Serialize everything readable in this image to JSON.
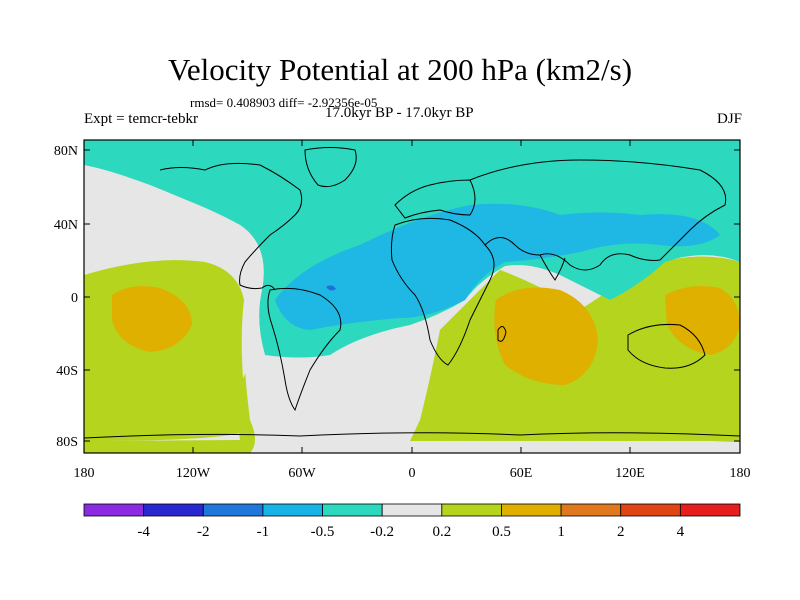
{
  "title": "Velocity Potential at 200 hPa (km2/s)",
  "stats_line": "rmsd= 0.408903 diff= -2.92356e-05",
  "left_label": "Expt = temcr-tebkr",
  "center_label": "17.0kyr BP - 17.0kyr BP",
  "right_label": "DJF",
  "lat_labels": [
    "80N",
    "40N",
    "0",
    "40S",
    "80S"
  ],
  "lon_labels": [
    "180",
    "120W",
    "60W",
    "0",
    "60E",
    "120E",
    "180"
  ],
  "colorbar": {
    "colors": [
      "#8a2be2",
      "#2828d2",
      "#1e78dc",
      "#16b4e6",
      "#2cd8be",
      "#e6e6e6",
      "#b4d41e",
      "#e0b000",
      "#e0781e",
      "#e04614",
      "#e61e1e"
    ],
    "labels": [
      "-4",
      "-2",
      "-1",
      "-0.5",
      "-0.2",
      "0.2",
      "0.5",
      "1",
      "2",
      "4"
    ]
  },
  "field_colors": {
    "very_negative": "#1fb7e3",
    "negative": "#2cd8be",
    "neutral": "#e6e6e6",
    "positive": "#b4d41e",
    "strong_positive": "#e0b000",
    "min_core": "#1e6fd9"
  }
}
